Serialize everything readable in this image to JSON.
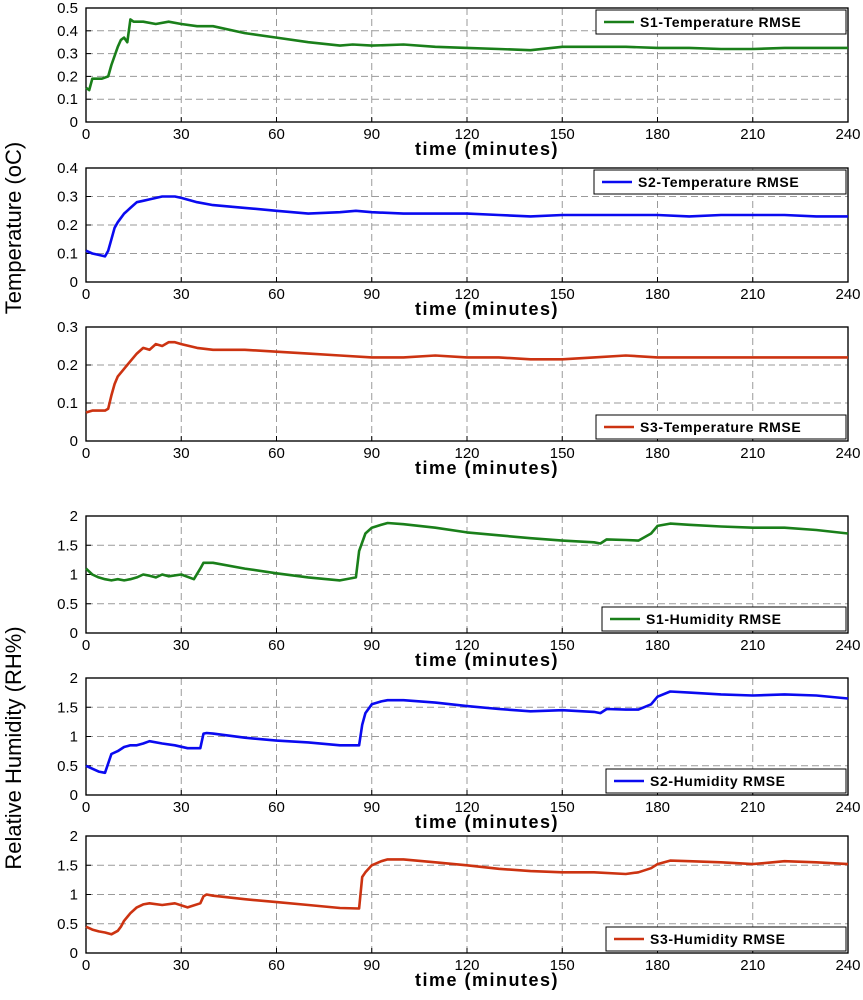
{
  "y_labels": {
    "temperature": "Temperature (oC)",
    "humidity": "Relative Humidity (RH%)"
  },
  "colors": {
    "S1": "#1a7f1a",
    "S2": "#0a0af0",
    "S3": "#cc3311"
  },
  "chart_data": [
    {
      "type": "line",
      "legend": "S1-Temperature RMSE",
      "legend_pos": "top-right",
      "xlabel": "time (minutes)",
      "xlim": [
        0,
        240
      ],
      "ylim": [
        0,
        0.5
      ],
      "xticks": [
        "0",
        "30",
        "60",
        "90",
        "120",
        "150",
        "180",
        "210",
        "240"
      ],
      "yticks": [
        "0",
        "0.1",
        "0.2",
        "0.3",
        "0.4",
        "0.5"
      ],
      "grid": true,
      "series": [
        {
          "name": "S1-Temperature RMSE",
          "color_key": "S1",
          "x": [
            0,
            1,
            2,
            3,
            5,
            7,
            8,
            10,
            11,
            12,
            13,
            14,
            15,
            18,
            22,
            26,
            30,
            35,
            40,
            50,
            60,
            70,
            80,
            84,
            90,
            100,
            110,
            120,
            130,
            140,
            150,
            160,
            170,
            180,
            190,
            200,
            210,
            220,
            230,
            240
          ],
          "y": [
            0.15,
            0.14,
            0.19,
            0.19,
            0.19,
            0.2,
            0.25,
            0.33,
            0.36,
            0.37,
            0.35,
            0.45,
            0.44,
            0.44,
            0.43,
            0.44,
            0.43,
            0.42,
            0.42,
            0.39,
            0.37,
            0.35,
            0.335,
            0.34,
            0.335,
            0.34,
            0.33,
            0.325,
            0.32,
            0.315,
            0.33,
            0.33,
            0.33,
            0.325,
            0.325,
            0.32,
            0.32,
            0.325,
            0.325,
            0.325
          ]
        }
      ]
    },
    {
      "type": "line",
      "legend": "S2-Temperature RMSE",
      "legend_pos": "top-right",
      "xlabel": "time (minutes)",
      "xlim": [
        0,
        240
      ],
      "ylim": [
        0,
        0.4
      ],
      "xticks": [
        "0",
        "30",
        "60",
        "90",
        "120",
        "150",
        "180",
        "210",
        "240"
      ],
      "yticks": [
        "0",
        "0.1",
        "0.2",
        "0.3",
        "0.4"
      ],
      "grid": true,
      "series": [
        {
          "name": "S2-Temperature RMSE",
          "color_key": "S2",
          "x": [
            0,
            2,
            4,
            6,
            7,
            8,
            9,
            10,
            12,
            14,
            16,
            18,
            20,
            24,
            28,
            30,
            35,
            40,
            50,
            60,
            70,
            80,
            85,
            90,
            100,
            110,
            120,
            130,
            140,
            150,
            160,
            170,
            180,
            190,
            200,
            210,
            220,
            230,
            240
          ],
          "y": [
            0.11,
            0.1,
            0.095,
            0.09,
            0.11,
            0.15,
            0.19,
            0.21,
            0.24,
            0.26,
            0.28,
            0.285,
            0.29,
            0.3,
            0.3,
            0.295,
            0.28,
            0.27,
            0.26,
            0.25,
            0.24,
            0.245,
            0.25,
            0.245,
            0.24,
            0.24,
            0.24,
            0.235,
            0.23,
            0.235,
            0.235,
            0.235,
            0.235,
            0.23,
            0.235,
            0.235,
            0.235,
            0.23,
            0.23
          ]
        }
      ]
    },
    {
      "type": "line",
      "legend": "S3-Temperature RMSE",
      "legend_pos": "bottom-right",
      "xlabel": "time (minutes)",
      "xlim": [
        0,
        240
      ],
      "ylim": [
        0,
        0.3
      ],
      "xticks": [
        "0",
        "30",
        "60",
        "90",
        "120",
        "150",
        "180",
        "210",
        "240"
      ],
      "yticks": [
        "0",
        "0.1",
        "0.2",
        "0.3"
      ],
      "grid": true,
      "series": [
        {
          "name": "S3-Temperature RMSE",
          "color_key": "S3",
          "x": [
            0,
            2,
            4,
            6,
            7,
            8,
            9,
            10,
            12,
            14,
            16,
            18,
            20,
            22,
            24,
            26,
            28,
            30,
            35,
            40,
            50,
            60,
            70,
            80,
            90,
            100,
            110,
            120,
            130,
            140,
            150,
            160,
            170,
            180,
            190,
            200,
            210,
            220,
            230,
            240
          ],
          "y": [
            0.075,
            0.08,
            0.08,
            0.08,
            0.085,
            0.12,
            0.15,
            0.17,
            0.19,
            0.21,
            0.23,
            0.245,
            0.24,
            0.255,
            0.25,
            0.26,
            0.26,
            0.255,
            0.245,
            0.24,
            0.24,
            0.235,
            0.23,
            0.225,
            0.22,
            0.22,
            0.225,
            0.22,
            0.22,
            0.215,
            0.215,
            0.22,
            0.225,
            0.22,
            0.22,
            0.22,
            0.22,
            0.22,
            0.22,
            0.22
          ]
        }
      ]
    },
    {
      "type": "line",
      "legend": "S1-Humidity RMSE",
      "legend_pos": "bottom-right",
      "xlabel": "time (minutes)",
      "xlim": [
        0,
        240
      ],
      "ylim": [
        0,
        2
      ],
      "xticks": [
        "0",
        "30",
        "60",
        "90",
        "120",
        "150",
        "180",
        "210",
        "240"
      ],
      "yticks": [
        "0",
        "0.5",
        "1",
        "1.5",
        "2"
      ],
      "grid": true,
      "series": [
        {
          "name": "S1-Humidity RMSE",
          "color_key": "S1",
          "x": [
            0,
            2,
            4,
            6,
            8,
            10,
            12,
            14,
            16,
            18,
            20,
            22,
            24,
            26,
            30,
            34,
            36,
            37,
            40,
            50,
            60,
            70,
            80,
            85,
            86,
            88,
            90,
            93,
            95,
            100,
            110,
            120,
            130,
            140,
            150,
            160,
            162,
            164,
            170,
            174,
            178,
            180,
            184,
            190,
            200,
            210,
            220,
            230,
            240
          ],
          "y": [
            1.1,
            1.0,
            0.95,
            0.92,
            0.9,
            0.92,
            0.9,
            0.92,
            0.95,
            1.0,
            0.98,
            0.95,
            1.0,
            0.97,
            1.0,
            0.92,
            1.1,
            1.2,
            1.2,
            1.1,
            1.02,
            0.95,
            0.9,
            0.95,
            1.4,
            1.7,
            1.8,
            1.85,
            1.88,
            1.86,
            1.8,
            1.72,
            1.67,
            1.62,
            1.58,
            1.55,
            1.53,
            1.6,
            1.59,
            1.58,
            1.7,
            1.83,
            1.87,
            1.85,
            1.82,
            1.8,
            1.8,
            1.76,
            1.7
          ]
        }
      ]
    },
    {
      "type": "line",
      "legend": "S2-Humidity RMSE",
      "legend_pos": "bottom-right",
      "xlabel": "time (minutes)",
      "xlim": [
        0,
        240
      ],
      "ylim": [
        0,
        2
      ],
      "xticks": [
        "0",
        "30",
        "60",
        "90",
        "120",
        "150",
        "180",
        "210",
        "240"
      ],
      "yticks": [
        "0",
        "0.5",
        "1",
        "1.5",
        "2"
      ],
      "grid": true,
      "series": [
        {
          "name": "S2-Humidity RMSE",
          "color_key": "S2",
          "x": [
            0,
            2,
            4,
            6,
            8,
            10,
            12,
            14,
            16,
            18,
            20,
            24,
            28,
            32,
            36,
            37,
            38,
            40,
            50,
            60,
            70,
            80,
            86,
            87,
            88,
            90,
            93,
            95,
            100,
            110,
            120,
            130,
            140,
            150,
            160,
            162,
            164,
            170,
            174,
            178,
            180,
            184,
            190,
            200,
            210,
            220,
            230,
            240
          ],
          "y": [
            0.5,
            0.45,
            0.4,
            0.38,
            0.7,
            0.75,
            0.82,
            0.85,
            0.85,
            0.88,
            0.92,
            0.88,
            0.85,
            0.8,
            0.8,
            1.05,
            1.06,
            1.05,
            0.98,
            0.93,
            0.9,
            0.85,
            0.85,
            1.2,
            1.4,
            1.55,
            1.6,
            1.62,
            1.62,
            1.58,
            1.52,
            1.47,
            1.43,
            1.45,
            1.42,
            1.4,
            1.47,
            1.46,
            1.46,
            1.55,
            1.68,
            1.77,
            1.75,
            1.72,
            1.7,
            1.72,
            1.7,
            1.65
          ]
        }
      ]
    },
    {
      "type": "line",
      "legend": "S3-Humidity RMSE",
      "legend_pos": "bottom-right",
      "xlabel": "time (minutes)",
      "xlim": [
        0,
        240
      ],
      "ylim": [
        0,
        2
      ],
      "xticks": [
        "0",
        "30",
        "60",
        "90",
        "120",
        "150",
        "180",
        "210",
        "240"
      ],
      "yticks": [
        "0",
        "0.5",
        "1",
        "1.5",
        "2"
      ],
      "grid": true,
      "series": [
        {
          "name": "S3-Humidity RMSE",
          "color_key": "S3",
          "x": [
            0,
            2,
            4,
            6,
            8,
            10,
            11,
            12,
            14,
            16,
            18,
            20,
            24,
            28,
            32,
            36,
            37,
            38,
            40,
            50,
            60,
            70,
            80,
            86,
            87,
            88,
            90,
            93,
            95,
            100,
            110,
            120,
            130,
            140,
            150,
            160,
            170,
            174,
            178,
            180,
            184,
            190,
            200,
            210,
            220,
            230,
            240
          ],
          "y": [
            0.45,
            0.4,
            0.37,
            0.35,
            0.32,
            0.38,
            0.45,
            0.55,
            0.68,
            0.78,
            0.83,
            0.85,
            0.82,
            0.85,
            0.78,
            0.85,
            0.97,
            1.0,
            0.98,
            0.92,
            0.87,
            0.82,
            0.77,
            0.76,
            1.3,
            1.38,
            1.5,
            1.57,
            1.6,
            1.6,
            1.55,
            1.5,
            1.44,
            1.4,
            1.38,
            1.38,
            1.35,
            1.38,
            1.45,
            1.52,
            1.58,
            1.57,
            1.55,
            1.52,
            1.57,
            1.55,
            1.52
          ]
        }
      ]
    }
  ]
}
